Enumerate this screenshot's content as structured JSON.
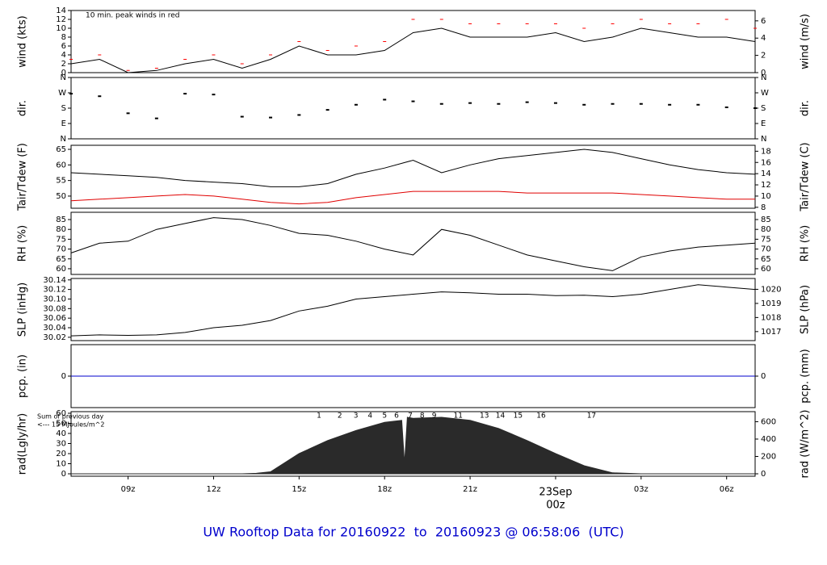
{
  "chart_data": [
    {
      "type": "line",
      "ylabel": "wind (kts)",
      "y2label": "wind (m/s)",
      "note": "10 min. peak winds in red",
      "note_color": "#dd0000",
      "xlim": [
        7,
        31
      ],
      "ylim": [
        0,
        14
      ],
      "yticks": [
        0,
        2,
        4,
        6,
        8,
        10,
        12,
        14
      ],
      "y2lim": [
        0,
        7.2
      ],
      "y2ticks": [
        0,
        2,
        4,
        6
      ],
      "x": [
        7,
        8,
        9,
        10,
        11,
        12,
        13,
        14,
        15,
        16,
        17,
        18,
        19,
        20,
        21,
        22,
        23,
        24,
        25,
        26,
        27,
        28,
        29,
        30,
        31
      ],
      "series": [
        {
          "name": "wind",
          "color": "#000000",
          "style": "line",
          "values": [
            2,
            3,
            0,
            0.5,
            2,
            3,
            1,
            3,
            6,
            4,
            4,
            5,
            9,
            10,
            8,
            8,
            8,
            9,
            7,
            8,
            10,
            9,
            8,
            8,
            7
          ]
        },
        {
          "name": "peak wind",
          "color": "#ff0000",
          "style": "dash",
          "values": [
            3,
            4,
            0.5,
            1,
            3,
            4,
            2,
            4,
            7,
            5,
            6,
            7,
            12,
            12,
            11,
            11,
            11,
            11,
            10,
            11,
            12,
            11,
            11,
            12,
            10
          ]
        }
      ]
    },
    {
      "type": "line",
      "ylabel": "dir.",
      "xlim": [
        7,
        31
      ],
      "ylim": [
        0,
        360
      ],
      "yticks": [
        {
          "value": 0,
          "label": "N"
        },
        {
          "value": 90,
          "label": "E"
        },
        {
          "value": 180,
          "label": "S"
        },
        {
          "value": 270,
          "label": "W"
        },
        {
          "value": 360,
          "label": "N"
        }
      ],
      "y2label": "dir.",
      "y2lim": [
        0,
        360
      ],
      "y2ticks": [
        {
          "value": 0,
          "label": "N"
        },
        {
          "value": 90,
          "label": "E"
        },
        {
          "value": 180,
          "label": "S"
        },
        {
          "value": 270,
          "label": "W"
        },
        {
          "value": 360,
          "label": "N"
        }
      ],
      "x": [
        7,
        8,
        9,
        10,
        11,
        12,
        13,
        14,
        15,
        16,
        17,
        18,
        19,
        20,
        21,
        22,
        23,
        24,
        25,
        26,
        27,
        28,
        29,
        30,
        31
      ],
      "series": [
        {
          "name": "direction",
          "color": "#000000",
          "style": "dot",
          "values": [
            265,
            250,
            150,
            120,
            265,
            260,
            130,
            125,
            140,
            170,
            200,
            230,
            220,
            205,
            210,
            205,
            215,
            210,
            200,
            205,
            205,
            200,
            200,
            185,
            180
          ]
        }
      ]
    },
    {
      "type": "line",
      "ylabel": "Tair/Tdew (F)",
      "y2label": "Tair/Tdew (C)",
      "xlim": [
        7,
        31
      ],
      "ylim": [
        46.1,
        66.3
      ],
      "yticks": [
        50,
        55,
        60,
        65
      ],
      "y2lim": [
        7.83,
        19.06
      ],
      "y2ticks": [
        8,
        10,
        12,
        14,
        16,
        18
      ],
      "x": [
        7,
        8,
        9,
        10,
        11,
        12,
        13,
        14,
        15,
        16,
        17,
        18,
        19,
        20,
        21,
        22,
        23,
        24,
        25,
        26,
        27,
        28,
        29,
        30,
        31
      ],
      "series": [
        {
          "name": "Tair",
          "color": "#000000",
          "style": "line",
          "values": [
            57.5,
            57,
            56.5,
            56,
            55,
            54.5,
            54,
            53,
            53,
            54,
            57,
            59,
            61.5,
            57.5,
            60,
            62,
            63,
            64,
            65,
            64,
            62,
            60,
            58.5,
            57.5,
            57
          ]
        },
        {
          "name": "Tdew",
          "color": "#e00000",
          "style": "line",
          "values": [
            48.5,
            49,
            49.5,
            50,
            50.5,
            50,
            49,
            48,
            47.5,
            48,
            49.5,
            50.5,
            51.5,
            51.5,
            51.5,
            51.5,
            51,
            51,
            51,
            51,
            50.5,
            50,
            49.5,
            49,
            49
          ]
        }
      ]
    },
    {
      "type": "line",
      "ylabel": "RH (%)",
      "y2label": "RH (%)",
      "xlim": [
        7,
        31
      ],
      "ylim": [
        57.1,
        88.7
      ],
      "yticks": [
        60,
        65,
        70,
        75,
        80,
        85
      ],
      "y2lim": [
        57.1,
        88.7
      ],
      "y2ticks": [
        60,
        65,
        70,
        75,
        80,
        85
      ],
      "x": [
        7,
        8,
        9,
        10,
        11,
        12,
        13,
        14,
        15,
        16,
        17,
        18,
        19,
        20,
        21,
        22,
        23,
        24,
        25,
        26,
        27,
        28,
        29,
        30,
        31
      ],
      "series": [
        {
          "name": "RH",
          "color": "#000000",
          "style": "line",
          "values": [
            68,
            73,
            74,
            80,
            83,
            86,
            85,
            82,
            78,
            77,
            74,
            70,
            67,
            80,
            77,
            72,
            67,
            64,
            61,
            59,
            66,
            69,
            71,
            72,
            73
          ]
        }
      ]
    },
    {
      "type": "line",
      "ylabel": "SLP (inHg)",
      "y2label": "SLP (hPa)",
      "xlim": [
        7,
        31
      ],
      "ylim": [
        30.013,
        30.143
      ],
      "yticks": [
        {
          "value": 30.02,
          "label": "30.02"
        },
        {
          "value": 30.04,
          "label": "30.04"
        },
        {
          "value": 30.06,
          "label": "30.06"
        },
        {
          "value": 30.08,
          "label": "30.08"
        },
        {
          "value": 30.1,
          "label": "30.10"
        },
        {
          "value": 30.12,
          "label": "30.12"
        },
        {
          "value": 30.14,
          "label": "30.14"
        }
      ],
      "y2lim": [
        1016.36,
        1020.77
      ],
      "y2ticks": [
        1017,
        1018,
        1019,
        1020
      ],
      "x": [
        7,
        8,
        9,
        10,
        11,
        12,
        13,
        14,
        15,
        16,
        17,
        18,
        19,
        20,
        21,
        22,
        23,
        24,
        25,
        26,
        27,
        28,
        29,
        30,
        31
      ],
      "series": [
        {
          "name": "SLP",
          "color": "#000000",
          "style": "line",
          "values": [
            30.023,
            30.025,
            30.024,
            30.025,
            30.03,
            30.04,
            30.045,
            30.055,
            30.075,
            30.085,
            30.1,
            30.105,
            30.11,
            30.115,
            30.113,
            30.11,
            30.11,
            30.107,
            30.108,
            30.105,
            30.11,
            30.12,
            30.13,
            30.125,
            30.12
          ]
        }
      ]
    },
    {
      "type": "line",
      "ylabel": "pcp. (in)",
      "y2label": "pcp. (mm)",
      "xlim": [
        7,
        31
      ],
      "ylim": [
        -1,
        1
      ],
      "yticks": [
        0
      ],
      "y2lim": [
        -25.4,
        25.4
      ],
      "y2ticks": [
        0
      ],
      "x": [
        7,
        31
      ],
      "series": [
        {
          "name": "precipitation",
          "color": "#0000cc",
          "style": "line",
          "values": [
            0,
            0
          ]
        }
      ]
    },
    {
      "type": "line",
      "ylabel": "rad(Lgly/hr)",
      "y2label": "rad (W/m^2)",
      "xlim": [
        7,
        31
      ],
      "ylim": [
        -2.4,
        61.6
      ],
      "yticks": [
        0,
        10,
        20,
        30,
        40,
        50,
        60
      ],
      "y2lim": [
        -27.9,
        716
      ],
      "y2ticks": [
        0,
        200,
        400,
        600
      ],
      "xticks": [
        {
          "value": 9,
          "label": "09z"
        },
        {
          "value": 12,
          "label": "12z"
        },
        {
          "value": 15,
          "label": "15z"
        },
        {
          "value": 18,
          "label": "18z"
        },
        {
          "value": 21,
          "label": "21z"
        },
        {
          "value": 24,
          "label": "00z"
        },
        {
          "value": 27,
          "label": "03z"
        },
        {
          "value": 30,
          "label": "06z"
        }
      ],
      "date_label": {
        "value": 24,
        "label": "23Sep"
      },
      "date_color": "#dd0000",
      "summary": [
        "Sum of previous day",
        "<--- 15 MJoules/m^2"
      ],
      "summary_color": "#9900cc",
      "hour_labels": [
        "1",
        "2",
        "3",
        "4",
        "5",
        "6",
        "7",
        "8",
        "9",
        "11",
        "13",
        "14",
        "15",
        "16",
        "17"
      ],
      "hour_label_x": [
        15.7,
        16.43,
        16.99,
        17.49,
        18.0,
        18.42,
        18.9,
        19.32,
        19.74,
        20.58,
        21.5,
        22.06,
        22.68,
        23.49,
        25.26
      ],
      "x": [
        7,
        8,
        9,
        10,
        11,
        12,
        13,
        13.5,
        14,
        15,
        16,
        17,
        18,
        18.6,
        18.7,
        18.8,
        19,
        20,
        21,
        22,
        23,
        24,
        25,
        26,
        27,
        28,
        29,
        30,
        31
      ],
      "series": [
        {
          "name": "radiation",
          "color": "#2a2a2a",
          "style": "area",
          "values": [
            0,
            0,
            0,
            0,
            0,
            0,
            0,
            0.5,
            2,
            20,
            33,
            43,
            51,
            53,
            10,
            56,
            55,
            56,
            53,
            45,
            33,
            20,
            8,
            1,
            0,
            0,
            0,
            0,
            0
          ]
        }
      ]
    }
  ],
  "footer_title": "UW Rooftop Data for 20160922  to  20160923 @ 06:58:06  (UTC)"
}
